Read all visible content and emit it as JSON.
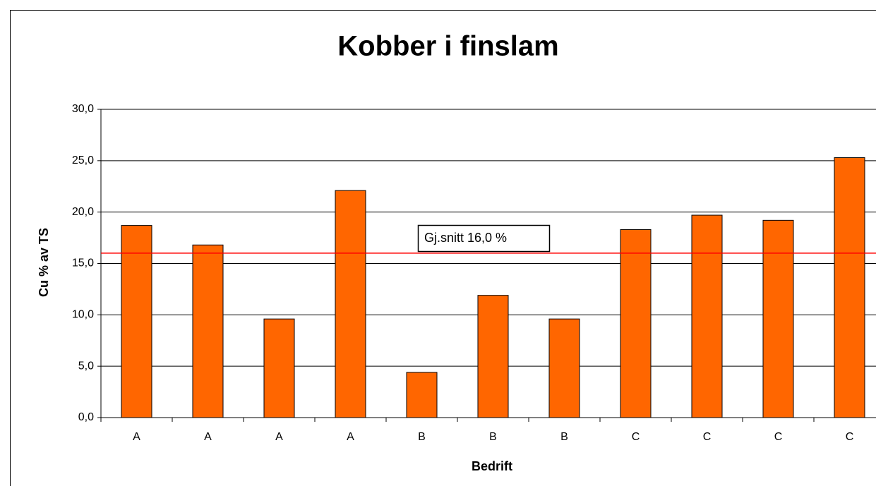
{
  "chart_data": {
    "type": "bar",
    "title": "Kobber i finslam",
    "x_label": "Bedrift",
    "y_label": "Cu % av TS",
    "categories": [
      "A",
      "A",
      "A",
      "A",
      "B",
      "B",
      "B",
      "C",
      "C",
      "C",
      "C"
    ],
    "values": [
      18.7,
      16.8,
      9.6,
      22.1,
      4.4,
      11.9,
      9.6,
      18.3,
      19.7,
      19.2,
      25.3
    ],
    "color": "#ff6600",
    "ylim": [
      0,
      30
    ],
    "yticks": [
      {
        "value": 0,
        "label": "0,0"
      },
      {
        "value": 5,
        "label": "5,0"
      },
      {
        "value": 10,
        "label": "10,0"
      },
      {
        "value": 15,
        "label": "15,0"
      },
      {
        "value": 20,
        "label": "20,0"
      },
      {
        "value": 25,
        "label": "25,0"
      },
      {
        "value": 30,
        "label": "30,0"
      }
    ],
    "grid": true,
    "reference_line": {
      "value": 16,
      "label": "Gj.snitt 16,0 %",
      "color": "#ff0000"
    }
  }
}
